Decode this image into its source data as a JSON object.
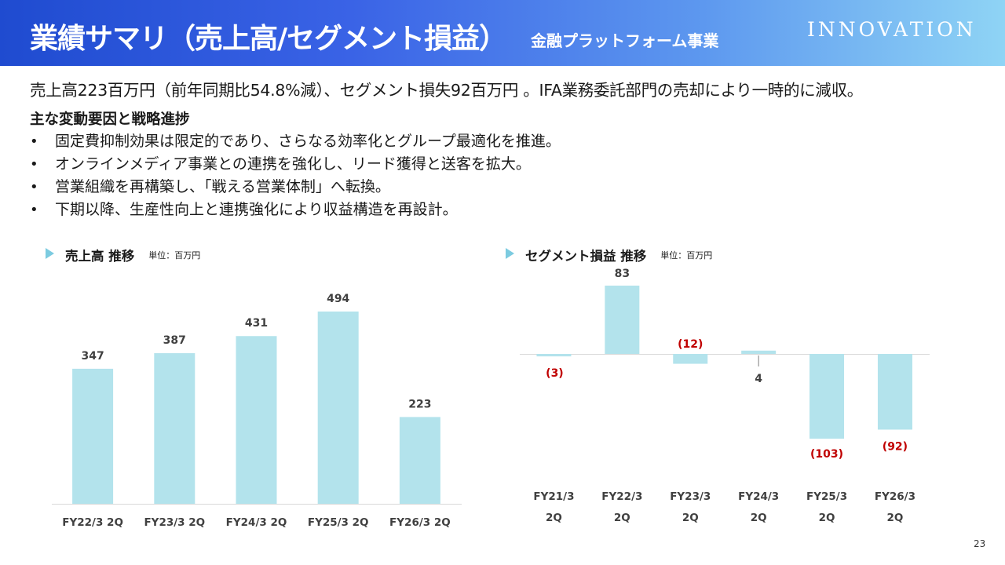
{
  "header": {
    "title": "業績サマリ（売上高/セグメント損益）",
    "subtitle": "金融プラットフォーム事業",
    "logo_text": "INNOVATION"
  },
  "summary": "売上高223百万円（前年同期比54.8%減）、セグメント損失92百万円 。IFA業務委託部門の売却により一時的に減収。",
  "section_heading": "主な変動要因と戦略進捗",
  "bullets": [
    "固定費抑制効果は限定的であり、さらなる効率化とグループ最適化を推進。",
    "オンラインメディア事業との連携を強化し、リード獲得と送客を拡大。",
    "営業組織を再構築し、「戦える営業体制」へ転換。",
    "下期以降、生産性向上と連携強化により収益構造を再設計。"
  ],
  "page_number": "23",
  "colors": {
    "bar": "#b3e3ec",
    "negative_label": "#c00000",
    "header_start": "#1f4bd0",
    "header_end": "#8fd4f5"
  },
  "chart_data": [
    {
      "type": "bar",
      "title": "売上高 推移",
      "unit": "単位：百万円",
      "categories": [
        "FY22/3 2Q",
        "FY23/3 2Q",
        "FY24/3 2Q",
        "FY25/3 2Q",
        "FY26/3 2Q"
      ],
      "values": [
        347,
        387,
        431,
        494,
        223
      ],
      "labels": [
        "347",
        "387",
        "431",
        "494",
        "223"
      ],
      "ylim": [
        0,
        550
      ]
    },
    {
      "type": "bar",
      "title": "セグメント損益 推移",
      "unit": "単位：百万円",
      "categories": [
        [
          "FY21/3",
          "2Q"
        ],
        [
          "FY22/3",
          "2Q"
        ],
        [
          "FY23/3",
          "2Q"
        ],
        [
          "FY24/3",
          "2Q"
        ],
        [
          "FY25/3",
          "2Q"
        ],
        [
          "FY26/3",
          "2Q"
        ]
      ],
      "values": [
        -3,
        83,
        -12,
        4,
        -103,
        -92
      ],
      "labels": [
        "(3)",
        "83",
        "(12)",
        "4",
        "(103)",
        "(92)"
      ],
      "ylim": [
        -120,
        100
      ]
    }
  ]
}
